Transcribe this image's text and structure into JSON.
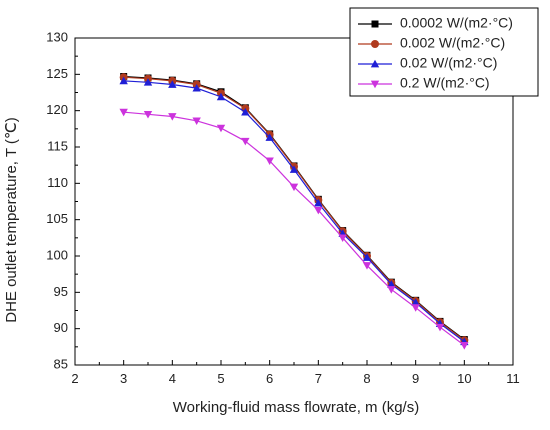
{
  "chart_data": {
    "type": "line",
    "title": "",
    "xlabel": "Working-fluid mass flowrate, m (kg/s)",
    "ylabel": "DHE outlet temperature, T (℃)",
    "xlim": [
      2,
      11
    ],
    "ylim": [
      85,
      130
    ],
    "x_ticks": [
      "2",
      "3",
      "4",
      "5",
      "6",
      "7",
      "8",
      "9",
      "10",
      "11"
    ],
    "y_ticks": [
      "85",
      "90",
      "95",
      "100",
      "105",
      "110",
      "115",
      "120",
      "125",
      "130"
    ],
    "grid": false,
    "legend_position": "top-right",
    "x": [
      3,
      3.5,
      4,
      4.5,
      5,
      5.5,
      6,
      6.5,
      7,
      7.5,
      8,
      8.5,
      9,
      9.5,
      10
    ],
    "series": [
      {
        "name": "0.0002 W/(m2·°C)",
        "color": "#000000",
        "marker": "square",
        "values": [
          124.7,
          124.5,
          124.2,
          123.7,
          122.6,
          120.4,
          116.8,
          112.4,
          107.8,
          103.5,
          100.1,
          96.4,
          93.9,
          91.0,
          88.5
        ]
      },
      {
        "name": "0.002 W/(m2·°C)",
        "color": "#b03a1e",
        "marker": "circle",
        "values": [
          124.6,
          124.4,
          124.1,
          123.6,
          122.4,
          120.3,
          116.7,
          112.3,
          107.7,
          103.4,
          100.0,
          96.3,
          93.8,
          90.9,
          88.4
        ]
      },
      {
        "name": "0.02 W/(m2·°C)",
        "color": "#1f1fd6",
        "marker": "triangle-up",
        "values": [
          124.1,
          123.9,
          123.6,
          123.1,
          121.9,
          119.8,
          116.3,
          111.9,
          107.3,
          103.1,
          99.8,
          96.1,
          93.6,
          90.7,
          88.2
        ]
      },
      {
        "name": "0.2 W/(m2·°C)",
        "color": "#cc33dd",
        "marker": "triangle-down",
        "values": [
          119.8,
          119.5,
          119.2,
          118.6,
          117.6,
          115.8,
          113.1,
          109.5,
          106.3,
          102.5,
          98.7,
          95.4,
          92.9,
          90.2,
          87.7
        ]
      }
    ]
  }
}
